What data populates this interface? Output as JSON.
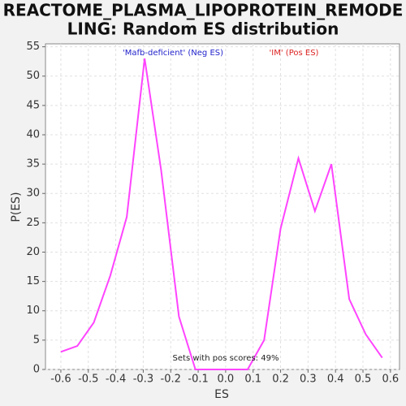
{
  "chart_data": {
    "type": "line",
    "title": "REACTOME_PLASMA_LIPOPROTEIN_REMODELING: Random ES distribution",
    "title_lines": [
      "REACTOME_PLASMA_LIPOPROTEIN_REMODE",
      "LING: Random ES distribution"
    ],
    "x_label": "ES",
    "y_label": "P(ES)",
    "annotations": [
      "'Mafb-deficient' (Neg ES)",
      "'IM' (Pos ES)",
      "Sets with pos scores: 49%"
    ],
    "annotation_colors": [
      "#2222cc",
      "#dd2222",
      "#222222"
    ],
    "x": [
      -0.6,
      -0.54,
      -0.48,
      -0.42,
      -0.36,
      -0.295,
      -0.235,
      -0.17,
      -0.11,
      -0.05,
      0.015,
      0.08,
      0.14,
      0.2,
      0.265,
      0.325,
      0.385,
      0.45,
      0.51,
      0.57
    ],
    "series": [
      {
        "name": "P(ES)",
        "color": "#ff44ff",
        "values": [
          3,
          4,
          8,
          16,
          26,
          53,
          34,
          9,
          0,
          0,
          0,
          0,
          5,
          24,
          36,
          27,
          35,
          12,
          6,
          2
        ]
      }
    ],
    "xlim": [
      -0.656,
      0.633
    ],
    "xticks": [
      -0.6,
      -0.5,
      -0.4,
      -0.3,
      -0.2,
      -0.1,
      {
        "value": 0,
        "label": "0.0"
      },
      0.1,
      0.2,
      0.3,
      0.4,
      0.5,
      0.6
    ],
    "ylim": [
      0,
      55.5
    ],
    "yticks": [
      0,
      5,
      10,
      15,
      20,
      25,
      30,
      35,
      40,
      45,
      50,
      55
    ],
    "grid": true
  }
}
